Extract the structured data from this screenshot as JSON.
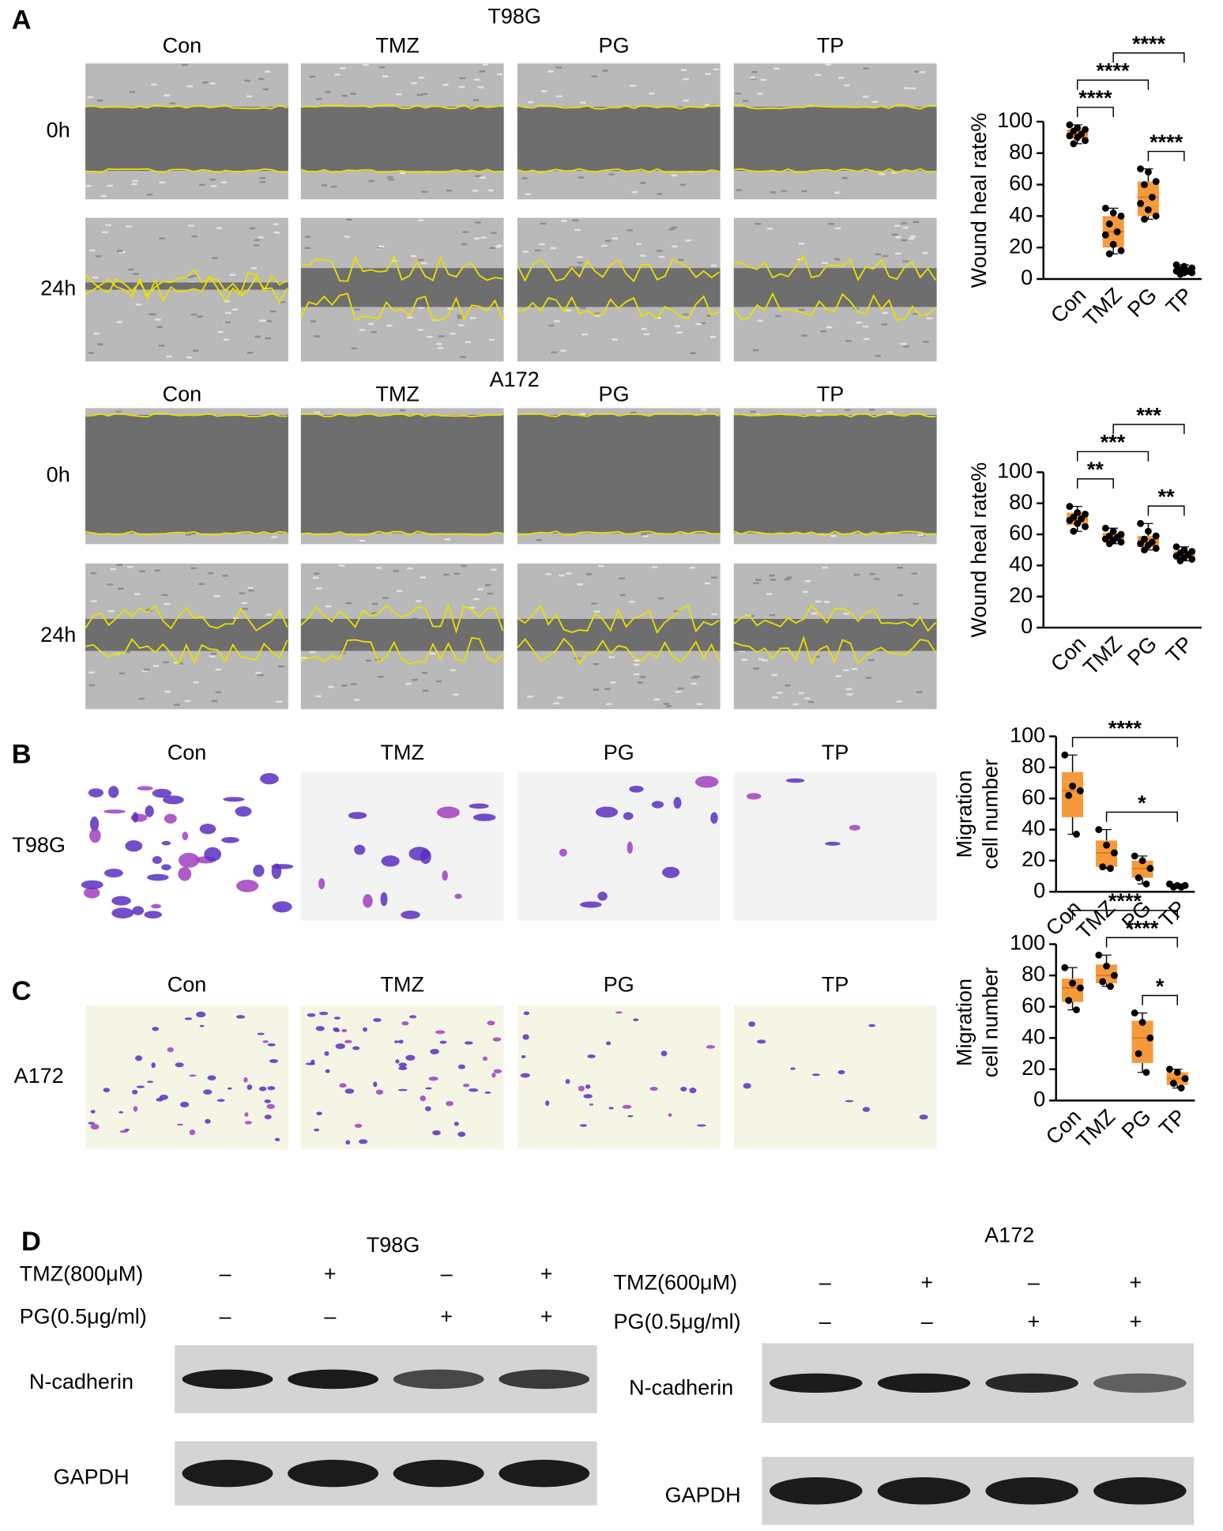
{
  "panel_labels": [
    "A",
    "B",
    "C",
    "D"
  ],
  "panel_a": {
    "sections": [
      {
        "cell_line": "T98G",
        "groups": [
          "Con",
          "TMZ",
          "PG",
          "TP"
        ],
        "timepoints": [
          "0h",
          "24h"
        ]
      },
      {
        "cell_line": "A172",
        "groups": [
          "Con",
          "TMZ",
          "PG",
          "TP"
        ],
        "timepoints": [
          "0h",
          "24h"
        ]
      }
    ]
  },
  "panel_b": {
    "cell_line": "T98G",
    "groups": [
      "Con",
      "TMZ",
      "PG",
      "TP"
    ]
  },
  "panel_c": {
    "cell_line": "A172",
    "groups": [
      "Con",
      "TMZ",
      "PG",
      "TP"
    ]
  },
  "panel_d": {
    "blots": [
      {
        "cell_line": "T98G",
        "treatments": [
          {
            "label": "TMZ(800μM)",
            "signs": [
              "–",
              "+",
              "–",
              "+"
            ]
          },
          {
            "label": "PG(0.5μg/ml)",
            "signs": [
              "–",
              "–",
              "+",
              "+"
            ]
          }
        ],
        "bands": [
          "N-cadherin",
          "GAPDH"
        ]
      },
      {
        "cell_line": "A172",
        "treatments": [
          {
            "label": "TMZ(600μM)",
            "signs": [
              "–",
              "+",
              "–",
              "+"
            ]
          },
          {
            "label": "PG(0.5μg/ml)",
            "signs": [
              "–",
              "–",
              "+",
              "+"
            ]
          }
        ],
        "bands": [
          "N-cadherin",
          "GAPDH"
        ]
      }
    ]
  },
  "chart_data": [
    {
      "type": "box",
      "ylabel": [
        "Wound heal rate%"
      ],
      "categories": [
        "Con",
        "TMZ",
        "PG",
        "TP"
      ],
      "color": "#f59a3c",
      "ylim": [
        0,
        100
      ],
      "yticks": [
        0,
        20,
        40,
        60,
        80,
        100
      ],
      "boxes": [
        {
          "min": 86,
          "q1": 89,
          "median": 92,
          "q3": 95,
          "max": 98,
          "points": [
            98,
            96,
            95,
            94,
            92,
            91,
            90,
            88,
            86
          ]
        },
        {
          "min": 16,
          "q1": 20,
          "median": 30,
          "q3": 40,
          "max": 45,
          "points": [
            45,
            42,
            40,
            35,
            30,
            28,
            22,
            18,
            16
          ]
        },
        {
          "min": 38,
          "q1": 40,
          "median": 52,
          "q3": 62,
          "max": 70,
          "points": [
            70,
            68,
            62,
            60,
            52,
            48,
            44,
            40,
            38
          ]
        },
        {
          "min": 3,
          "q1": 4,
          "median": 5,
          "q3": 7,
          "max": 9,
          "points": [
            9,
            8,
            7,
            6,
            5,
            5,
            4,
            4,
            3
          ]
        }
      ],
      "brackets": [
        {
          "from": 2,
          "to": 3,
          "label": "****"
        },
        {
          "from": 0,
          "to": 1,
          "label": "****"
        },
        {
          "from": 0,
          "to": 2,
          "label": "****"
        },
        {
          "from": 1,
          "to": 3,
          "label": "****"
        }
      ]
    },
    {
      "type": "box",
      "ylabel": [
        "Wound heal rate%"
      ],
      "categories": [
        "Con",
        "TMZ",
        "PG",
        "TP"
      ],
      "color": "#f59a3c",
      "ylim": [
        0,
        100
      ],
      "yticks": [
        0,
        20,
        40,
        60,
        80,
        100
      ],
      "boxes": [
        {
          "min": 62,
          "q1": 66,
          "median": 70,
          "q3": 74,
          "max": 78,
          "points": [
            78,
            74,
            73,
            71,
            70,
            69,
            67,
            65,
            62
          ]
        },
        {
          "min": 54,
          "q1": 56,
          "median": 58,
          "q3": 61,
          "max": 64,
          "points": [
            64,
            62,
            60,
            59,
            58,
            57,
            56,
            55,
            54
          ]
        },
        {
          "min": 50,
          "q1": 52,
          "median": 55,
          "q3": 59,
          "max": 67,
          "points": [
            67,
            62,
            59,
            57,
            55,
            54,
            53,
            51,
            50
          ]
        },
        {
          "min": 43,
          "q1": 45,
          "median": 46,
          "q3": 49,
          "max": 52,
          "points": [
            52,
            50,
            49,
            48,
            47,
            46,
            45,
            44,
            43
          ]
        }
      ],
      "brackets": [
        {
          "from": 2,
          "to": 3,
          "label": "**"
        },
        {
          "from": 0,
          "to": 1,
          "label": "**"
        },
        {
          "from": 0,
          "to": 2,
          "label": "***"
        },
        {
          "from": 1,
          "to": 3,
          "label": "***"
        }
      ]
    },
    {
      "type": "box",
      "ylabel": [
        "Migration",
        "cell number"
      ],
      "categories": [
        "Con",
        "TMZ",
        "PG",
        "TP"
      ],
      "color": "#f59a3c",
      "ylim": [
        0,
        100
      ],
      "yticks": [
        0,
        20,
        40,
        60,
        80,
        100
      ],
      "boxes": [
        {
          "min": 37,
          "q1": 48,
          "median": 65,
          "q3": 77,
          "max": 88,
          "points": [
            88,
            68,
            65,
            62,
            37
          ]
        },
        {
          "min": 15,
          "q1": 16,
          "median": 25,
          "q3": 33,
          "max": 40,
          "points": [
            40,
            30,
            25,
            16,
            15
          ]
        },
        {
          "min": 5,
          "q1": 9,
          "median": 15,
          "q3": 20,
          "max": 23,
          "points": [
            23,
            20,
            15,
            9,
            5
          ]
        },
        {
          "min": 3,
          "q1": 3,
          "median": 4,
          "q3": 4,
          "max": 5,
          "points": [
            5,
            4,
            4,
            3,
            3
          ]
        }
      ],
      "brackets": [
        {
          "from": 1,
          "to": 3,
          "label": "*"
        },
        {
          "from": 0,
          "to": 3,
          "label": "****"
        }
      ]
    },
    {
      "type": "box",
      "ylabel": [
        "Migration",
        "cell number"
      ],
      "categories": [
        "Con",
        "TMZ",
        "PG",
        "TP"
      ],
      "color": "#f59a3c",
      "ylim": [
        0,
        100
      ],
      "yticks": [
        0,
        20,
        40,
        60,
        80,
        100
      ],
      "boxes": [
        {
          "min": 58,
          "q1": 63,
          "median": 72,
          "q3": 78,
          "max": 85,
          "points": [
            85,
            75,
            72,
            64,
            58
          ]
        },
        {
          "min": 73,
          "q1": 75,
          "median": 80,
          "q3": 87,
          "max": 93,
          "points": [
            93,
            86,
            80,
            76,
            73
          ]
        },
        {
          "min": 18,
          "q1": 24,
          "median": 40,
          "q3": 51,
          "max": 56,
          "points": [
            56,
            50,
            40,
            30,
            18
          ]
        },
        {
          "min": 8,
          "q1": 10,
          "median": 14,
          "q3": 18,
          "max": 20,
          "points": [
            20,
            18,
            14,
            11,
            8
          ]
        }
      ],
      "brackets": [
        {
          "from": 2,
          "to": 3,
          "label": "*"
        },
        {
          "from": 1,
          "to": 3,
          "label": "****"
        },
        {
          "from": 0,
          "to": 3,
          "label": "****"
        }
      ]
    }
  ]
}
